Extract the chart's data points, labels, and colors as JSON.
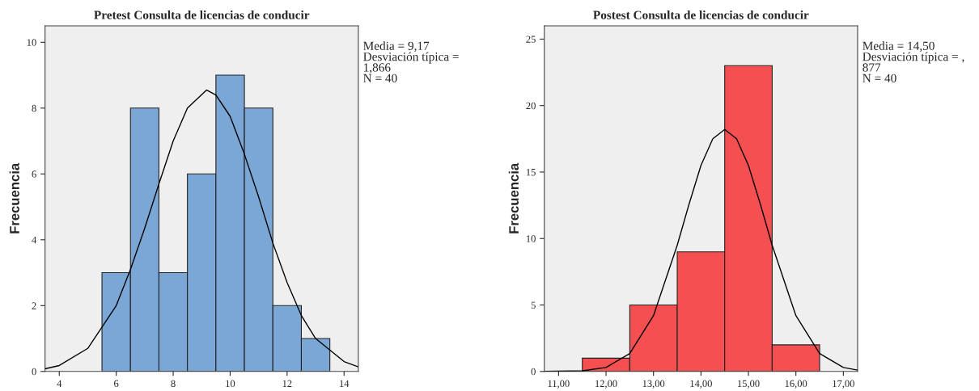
{
  "chart_data": [
    {
      "type": "histogram",
      "title": "Pretest Consulta de licencias de conducir",
      "ylabel": "Frecuencia",
      "bins": [
        5.5,
        6.5,
        7.5,
        8.5,
        9.5,
        10.5,
        11.5,
        12.5,
        13.5
      ],
      "series": [
        {
          "values": [
            3,
            8,
            3,
            6,
            9,
            8,
            2,
            1
          ],
          "color": "#7ba7d6"
        },
        {
          "type": "line",
          "color": "#000000",
          "x": [
            3.5,
            4,
            5,
            6,
            6.5,
            7,
            7.5,
            8,
            8.5,
            9.17,
            9.5,
            10,
            10.5,
            11,
            11.5,
            12,
            12.5,
            13,
            14,
            14.5
          ],
          "values": [
            0.08,
            0.18,
            0.7,
            2.0,
            3.1,
            4.35,
            5.7,
            7.0,
            8.0,
            8.55,
            8.4,
            7.75,
            6.6,
            5.3,
            3.9,
            2.7,
            1.7,
            1.0,
            0.3,
            0.14
          ]
        }
      ],
      "annotations": [
        "Media = 9,17\nDesviación típica =\n1,866\nN = 40"
      ],
      "xlim": [
        3.5,
        14.5
      ],
      "xticks": [
        4,
        6,
        8,
        10,
        12,
        14
      ],
      "ylim": [
        0,
        10.5
      ],
      "yticks": [
        0,
        2,
        4,
        6,
        8,
        10
      ],
      "grid": false,
      "legend": false
    },
    {
      "type": "histogram",
      "title": "Postest Consulta de licencias de conducir",
      "ylabel": "Frecuencia",
      "bins": [
        11.5,
        12.5,
        13.5,
        14.5,
        15.5,
        16.5
      ],
      "series": [
        {
          "values": [
            1,
            5,
            9,
            23,
            2
          ],
          "color": "#f45052"
        },
        {
          "type": "line",
          "color": "#000000",
          "x": [
            10.7,
            11.5,
            12,
            12.5,
            13,
            13.5,
            13.75,
            14,
            14.25,
            14.5,
            14.75,
            15,
            15.25,
            15.5,
            16,
            16.5,
            17,
            17.3
          ],
          "values": [
            0.0,
            0.05,
            0.3,
            1.35,
            4.2,
            9.5,
            12.6,
            15.5,
            17.5,
            18.2,
            17.5,
            15.5,
            12.6,
            9.5,
            4.2,
            1.35,
            0.3,
            0.1
          ]
        }
      ],
      "annotations": [
        "Media = 14,50\nDesviación típica = ,\n877\nN = 40"
      ],
      "xlim": [
        10.7,
        17.3
      ],
      "xticks": [
        {
          "value": 11,
          "label": "11,00"
        },
        {
          "value": 12,
          "label": "12,00"
        },
        {
          "value": 13,
          "label": "13,00"
        },
        {
          "value": 14,
          "label": "14,00"
        },
        {
          "value": 15,
          "label": "15,00"
        },
        {
          "value": 16,
          "label": "16,00"
        },
        {
          "value": 17,
          "label": "17,00"
        }
      ],
      "ylim": [
        0,
        26
      ],
      "yticks": [
        0,
        5,
        10,
        15,
        20,
        25
      ],
      "grid": false,
      "legend": false
    }
  ]
}
